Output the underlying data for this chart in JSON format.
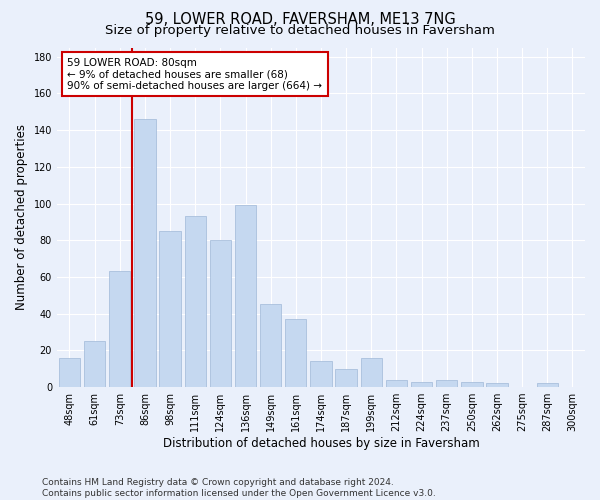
{
  "title": "59, LOWER ROAD, FAVERSHAM, ME13 7NG",
  "subtitle": "Size of property relative to detached houses in Faversham",
  "xlabel": "Distribution of detached houses by size in Faversham",
  "ylabel": "Number of detached properties",
  "categories": [
    "48sqm",
    "61sqm",
    "73sqm",
    "86sqm",
    "98sqm",
    "111sqm",
    "124sqm",
    "136sqm",
    "149sqm",
    "161sqm",
    "174sqm",
    "187sqm",
    "199sqm",
    "212sqm",
    "224sqm",
    "237sqm",
    "250sqm",
    "262sqm",
    "275sqm",
    "287sqm",
    "300sqm"
  ],
  "values": [
    16,
    25,
    63,
    146,
    85,
    93,
    80,
    99,
    45,
    37,
    14,
    10,
    16,
    4,
    3,
    4,
    3,
    2,
    0,
    2,
    0
  ],
  "bar_color": "#c5d8f0",
  "bar_edge_color": "#a0b8d8",
  "vline_color": "#cc0000",
  "vline_x": 2.5,
  "annotation_text": "59 LOWER ROAD: 80sqm\n← 9% of detached houses are smaller (68)\n90% of semi-detached houses are larger (664) →",
  "annotation_box_color": "#ffffff",
  "annotation_box_edge": "#cc0000",
  "ylim": [
    0,
    185
  ],
  "yticks": [
    0,
    20,
    40,
    60,
    80,
    100,
    120,
    140,
    160,
    180
  ],
  "footer": "Contains HM Land Registry data © Crown copyright and database right 2024.\nContains public sector information licensed under the Open Government Licence v3.0.",
  "bg_color": "#eaf0fb",
  "plot_bg_color": "#eaf0fb",
  "grid_color": "#ffffff",
  "title_fontsize": 10.5,
  "subtitle_fontsize": 9.5,
  "tick_fontsize": 7,
  "ylabel_fontsize": 8.5,
  "xlabel_fontsize": 8.5,
  "footer_fontsize": 6.5,
  "annot_fontsize": 7.5
}
